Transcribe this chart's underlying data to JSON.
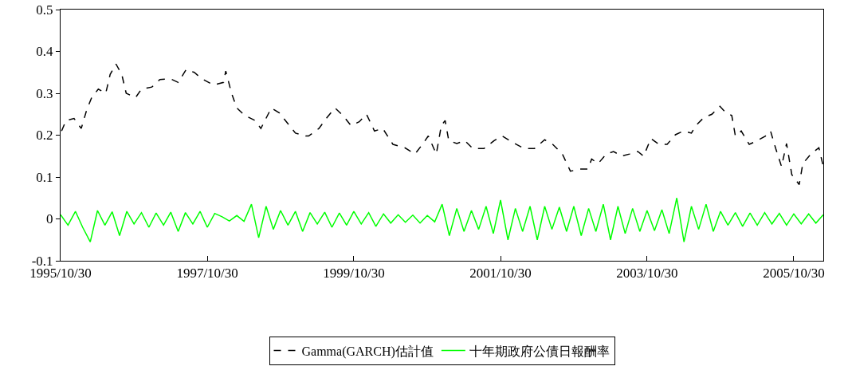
{
  "chart_data": {
    "type": "line",
    "xlim": [
      "1995-10-30",
      "2006-03-26"
    ],
    "xticks": [
      {
        "value": "1995-10-30",
        "label": "1995/10/30"
      },
      {
        "value": "1997-10-30",
        "label": "1997/10/30"
      },
      {
        "value": "1999-10-30",
        "label": "1999/10/30"
      },
      {
        "value": "2001-10-30",
        "label": "2001/10/30"
      },
      {
        "value": "2003-10-30",
        "label": "2003/10/30"
      },
      {
        "value": "2005-10-30",
        "label": "2005/10/30"
      }
    ],
    "ylim": [
      -0.1,
      0.5
    ],
    "yticks": [
      {
        "value": -0.1,
        "label": "-0.1"
      },
      0,
      {
        "value": 0.1,
        "label": "0.1"
      },
      {
        "value": 0.2,
        "label": "0.2"
      },
      {
        "value": 0.3,
        "label": "0.3"
      },
      {
        "value": 0.4,
        "label": "0.4"
      },
      {
        "value": 0.5,
        "label": "0.5"
      }
    ],
    "grid": false,
    "legend": "bottom",
    "marker": "none",
    "series": [
      {
        "name": "Gamma(GARCH)估計值",
        "color": "#000000",
        "line_style": "dashed",
        "x": [
          "1995-11-04",
          "1995-11-26",
          "1996-01-05",
          "1996-02-10",
          "1996-03-08",
          "1996-04-02",
          "1996-05-05",
          "1996-06-11",
          "1996-07-03",
          "1996-08-01",
          "1996-08-30",
          "1996-09-21",
          "1996-11-07",
          "1996-12-06",
          "1997-01-27",
          "1997-03-08",
          "1997-04-28",
          "1997-06-07",
          "1997-07-17",
          "1997-08-26",
          "1997-10-02",
          "1997-11-29",
          "1998-01-19",
          "1998-01-30",
          "1998-02-28",
          "1998-03-26",
          "1998-05-05",
          "1998-06-25",
          "1998-07-24",
          "1998-09-14",
          "1998-10-24",
          "1998-12-03",
          "1999-01-12",
          "1999-03-04",
          "1999-03-19",
          "1999-05-09",
          "1999-06-18",
          "1999-07-28",
          "1999-09-06",
          "1999-10-16",
          "1999-11-26",
          "2000-01-01",
          "2000-02-10",
          "2000-03-22",
          "2000-05-12",
          "2000-07-10",
          "2000-08-30",
          "2000-10-09",
          "2000-11-04",
          "2000-12-14",
          "2001-01-08",
          "2001-01-27",
          "2001-02-14",
          "2001-03-26",
          "2001-05-05",
          "2001-06-14",
          "2001-08-08",
          "2001-09-28",
          "2001-11-07",
          "2001-12-28",
          "2002-02-25",
          "2002-04-17",
          "2002-06-07",
          "2002-07-17",
          "2002-09-03",
          "2002-10-13",
          "2002-11-29",
          "2003-01-08",
          "2003-01-27",
          "2003-02-28",
          "2003-04-10",
          "2003-05-16",
          "2003-06-25",
          "2003-08-04",
          "2003-09-14",
          "2003-10-13",
          "2003-11-18",
          "2003-12-28",
          "2004-02-07",
          "2004-03-19",
          "2004-04-28",
          "2004-06-07",
          "2004-06-29",
          "2004-08-08",
          "2004-09-17",
          "2004-10-27",
          "2004-11-26",
          "2004-12-25",
          "2005-01-12",
          "2005-02-10",
          "2005-03-22",
          "2005-05-01",
          "2005-06-11",
          "2005-07-06",
          "2005-08-01",
          "2005-08-30",
          "2005-09-24",
          "2005-10-20",
          "2005-11-26",
          "2005-12-14",
          "2006-01-23",
          "2006-03-04",
          "2006-03-26"
        ],
        "values": [
          0.21,
          0.235,
          0.24,
          0.216,
          0.26,
          0.29,
          0.31,
          0.3,
          0.345,
          0.37,
          0.345,
          0.3,
          0.29,
          0.31,
          0.315,
          0.333,
          0.335,
          0.326,
          0.357,
          0.35,
          0.335,
          0.32,
          0.326,
          0.353,
          0.3,
          0.265,
          0.247,
          0.235,
          0.216,
          0.265,
          0.253,
          0.229,
          0.205,
          0.198,
          0.198,
          0.216,
          0.242,
          0.265,
          0.247,
          0.223,
          0.232,
          0.25,
          0.21,
          0.216,
          0.178,
          0.17,
          0.155,
          0.18,
          0.198,
          0.155,
          0.223,
          0.235,
          0.187,
          0.18,
          0.187,
          0.168,
          0.168,
          0.187,
          0.198,
          0.183,
          0.168,
          0.168,
          0.189,
          0.178,
          0.155,
          0.114,
          0.119,
          0.119,
          0.143,
          0.132,
          0.155,
          0.161,
          0.15,
          0.155,
          0.161,
          0.15,
          0.192,
          0.178,
          0.178,
          0.201,
          0.21,
          0.205,
          0.223,
          0.242,
          0.25,
          0.269,
          0.253,
          0.247,
          0.198,
          0.21,
          0.178,
          0.187,
          0.198,
          0.21,
          0.168,
          0.125,
          0.18,
          0.106,
          0.082,
          0.132,
          0.155,
          0.17,
          0.125
        ]
      },
      {
        "name": "十年期政府公債日報酬率",
        "color": "#00ff00",
        "line_style": "solid",
        "x": [
          "1995-10-30",
          "1995-12-06",
          "1996-01-12",
          "1996-02-17",
          "1996-03-26",
          "1996-05-01",
          "1996-06-07",
          "1996-07-13",
          "1996-08-19",
          "1996-09-24",
          "1996-10-30",
          "1996-12-06",
          "1997-01-12",
          "1997-02-17",
          "1997-03-26",
          "1997-05-01",
          "1997-06-07",
          "1997-07-13",
          "1997-08-19",
          "1997-09-24",
          "1997-10-30",
          "1997-12-06",
          "1998-01-12",
          "1998-02-17",
          "1998-03-26",
          "1998-05-01",
          "1998-06-07",
          "1998-07-13",
          "1998-08-19",
          "1998-09-24",
          "1998-10-30",
          "1998-12-06",
          "1999-01-12",
          "1999-02-17",
          "1999-03-26",
          "1999-05-01",
          "1999-06-07",
          "1999-07-13",
          "1999-08-19",
          "1999-09-24",
          "1999-10-30",
          "1999-12-06",
          "2000-01-12",
          "2000-02-17",
          "2000-03-26",
          "2000-05-01",
          "2000-06-07",
          "2000-07-13",
          "2000-08-19",
          "2000-09-24",
          "2000-10-30",
          "2000-12-06",
          "2001-01-12",
          "2001-02-17",
          "2001-03-26",
          "2001-05-01",
          "2001-06-07",
          "2001-07-13",
          "2001-08-19",
          "2001-09-24",
          "2001-10-30",
          "2001-12-06",
          "2002-01-12",
          "2002-02-17",
          "2002-03-26",
          "2002-05-01",
          "2002-06-07",
          "2002-07-13",
          "2002-08-19",
          "2002-09-24",
          "2002-10-30",
          "2002-12-06",
          "2003-01-12",
          "2003-02-17",
          "2003-03-26",
          "2003-05-01",
          "2003-06-07",
          "2003-07-13",
          "2003-08-19",
          "2003-09-24",
          "2003-10-30",
          "2003-12-06",
          "2004-01-12",
          "2004-02-17",
          "2004-03-26",
          "2004-05-01",
          "2004-06-07",
          "2004-07-13",
          "2004-08-19",
          "2004-09-24",
          "2004-10-30",
          "2004-12-06",
          "2005-01-12",
          "2005-02-17",
          "2005-03-26",
          "2005-05-01",
          "2005-06-07",
          "2005-07-13",
          "2005-08-19",
          "2005-09-24",
          "2005-10-30",
          "2005-12-06",
          "2006-01-12",
          "2006-02-17",
          "2006-03-26"
        ],
        "values": [
          0.01,
          -0.015,
          0.018,
          -0.02,
          -0.055,
          0.02,
          -0.015,
          0.017,
          -0.04,
          0.018,
          -0.012,
          0.015,
          -0.02,
          0.014,
          -0.015,
          0.016,
          -0.03,
          0.015,
          -0.012,
          0.018,
          -0.02,
          0.013,
          0.005,
          -0.005,
          0.008,
          -0.006,
          0.035,
          -0.045,
          0.03,
          -0.025,
          0.02,
          -0.015,
          0.018,
          -0.03,
          0.015,
          -0.012,
          0.016,
          -0.02,
          0.014,
          -0.015,
          0.018,
          -0.012,
          0.015,
          -0.018,
          0.012,
          -0.01,
          0.01,
          -0.008,
          0.009,
          -0.01,
          0.008,
          -0.007,
          0.035,
          -0.04,
          0.025,
          -0.03,
          0.02,
          -0.025,
          0.03,
          -0.035,
          0.045,
          -0.05,
          0.025,
          -0.03,
          0.03,
          -0.05,
          0.03,
          -0.025,
          0.028,
          -0.03,
          0.03,
          -0.04,
          0.025,
          -0.03,
          0.035,
          -0.05,
          0.03,
          -0.035,
          0.025,
          -0.03,
          0.02,
          -0.028,
          0.022,
          -0.035,
          0.05,
          -0.055,
          0.03,
          -0.025,
          0.035,
          -0.03,
          0.018,
          -0.015,
          0.015,
          -0.018,
          0.014,
          -0.015,
          0.015,
          -0.012,
          0.013,
          -0.015,
          0.012,
          -0.012,
          0.012,
          -0.01,
          0.01
        ]
      }
    ]
  }
}
